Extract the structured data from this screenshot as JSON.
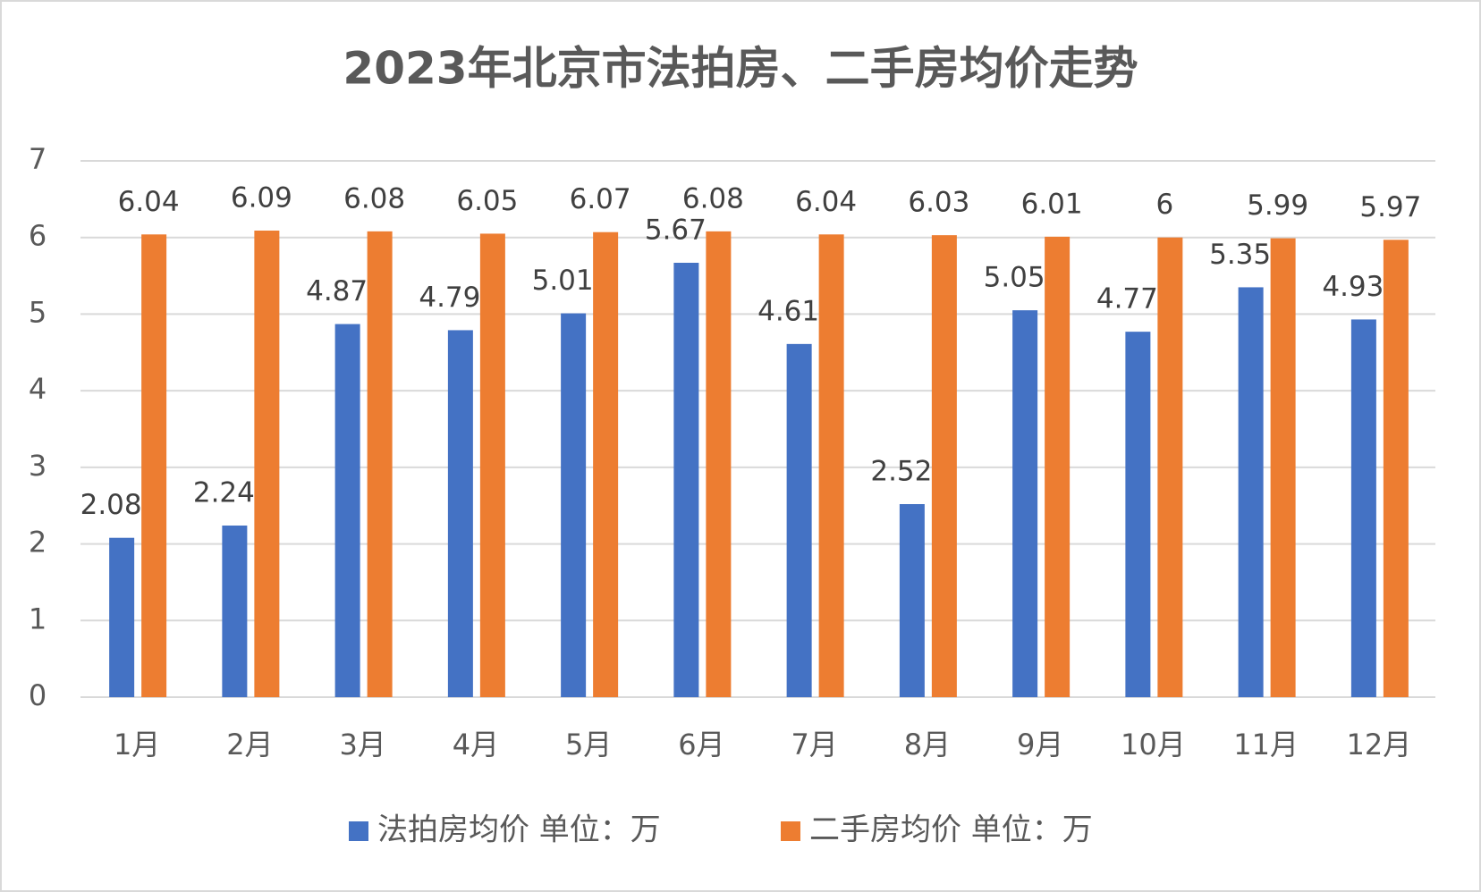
{
  "chart_data": {
    "type": "bar",
    "title": "2023年北京市法拍房、二手房均价走势",
    "categories": [
      "1月",
      "2月",
      "3月",
      "4月",
      "5月",
      "6月",
      "7月",
      "8月",
      "9月",
      "10月",
      "11月",
      "12月"
    ],
    "series": [
      {
        "name": "法拍房均价 单位：万",
        "color": "#4472c4",
        "values": [
          2.08,
          2.24,
          4.87,
          4.79,
          5.01,
          5.67,
          4.61,
          2.52,
          5.05,
          4.77,
          5.35,
          4.93
        ]
      },
      {
        "name": "二手房均价 单位：万",
        "color": "#ed7d31",
        "values": [
          6.04,
          6.09,
          6.08,
          6.05,
          6.07,
          6.08,
          6.04,
          6.03,
          6.01,
          6,
          5.99,
          5.97
        ]
      }
    ],
    "ylim": [
      0,
      7
    ],
    "yticks": [
      0,
      1,
      2,
      3,
      4,
      5,
      6,
      7
    ],
    "grid": true,
    "legend": "bottom"
  }
}
